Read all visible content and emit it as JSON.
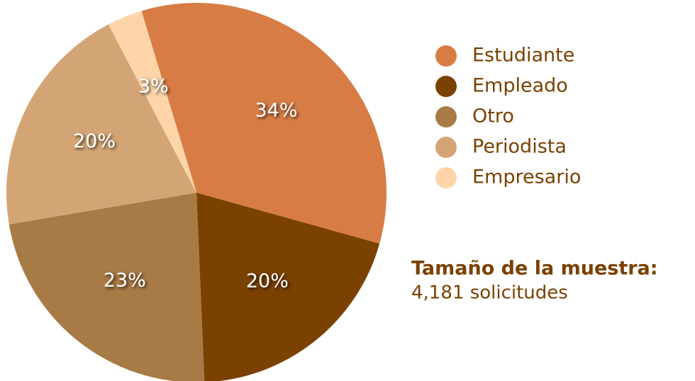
{
  "chart_data": {
    "type": "pie",
    "categories": [
      "Estudiante",
      "Empleado",
      "Otro",
      "Periodista",
      "Empresario"
    ],
    "values": [
      34,
      20,
      23,
      20,
      3
    ],
    "value_labels": [
      "34%",
      "20%",
      "23%",
      "20%",
      "3%"
    ],
    "colors": [
      "#d87c45",
      "#7a4100",
      "#a87a45",
      "#d4a574",
      "#fdd5a8"
    ],
    "annotations": [
      "Tamaño de la muestra:",
      "4,181 solicitudes"
    ]
  }
}
